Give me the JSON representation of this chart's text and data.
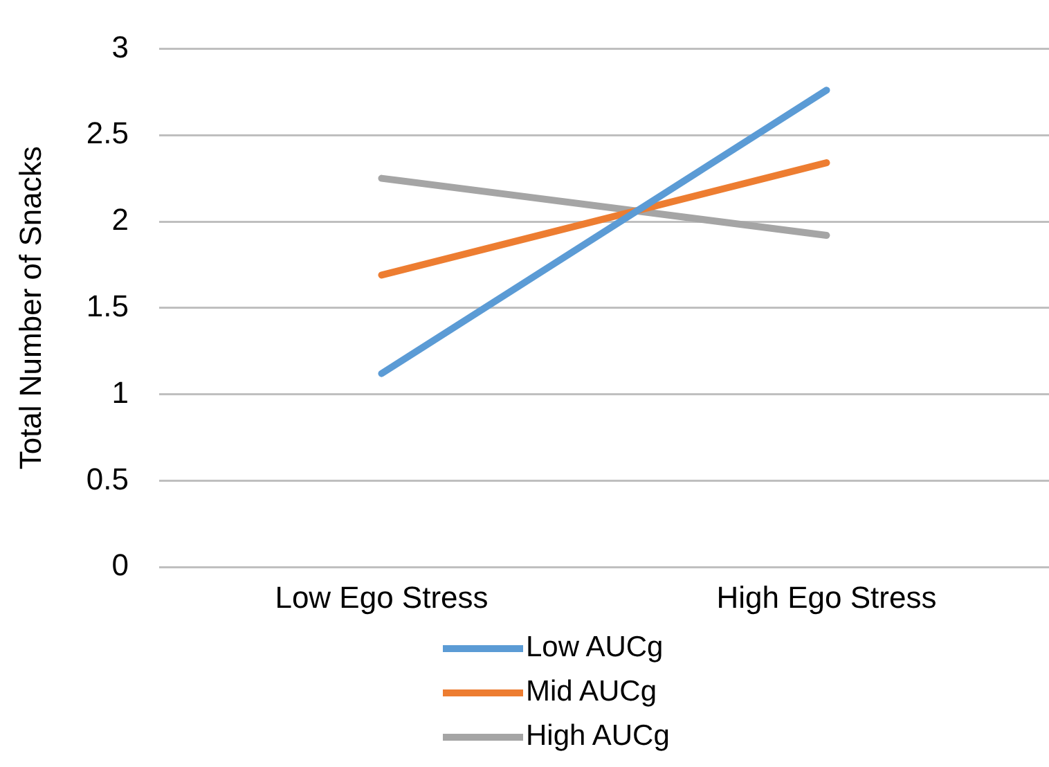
{
  "chart_data": {
    "type": "line",
    "ylabel": "Total Number of Snacks",
    "categories": [
      "Low Ego Stress",
      "High Ego Stress"
    ],
    "series": [
      {
        "name": "Low AUCg",
        "color": "#5b9bd5",
        "values": [
          1.12,
          2.76
        ]
      },
      {
        "name": "Mid AUCg",
        "color": "#ed7d31",
        "values": [
          1.69,
          2.34
        ]
      },
      {
        "name": "High AUCg",
        "color": "#a5a5a5",
        "values": [
          2.25,
          1.92
        ]
      }
    ],
    "ylim": [
      0,
      3
    ],
    "yticks": [
      0,
      0.5,
      1,
      1.5,
      2,
      2.5,
      3
    ],
    "grid": "y",
    "legend": "bottom",
    "marker": "none"
  }
}
